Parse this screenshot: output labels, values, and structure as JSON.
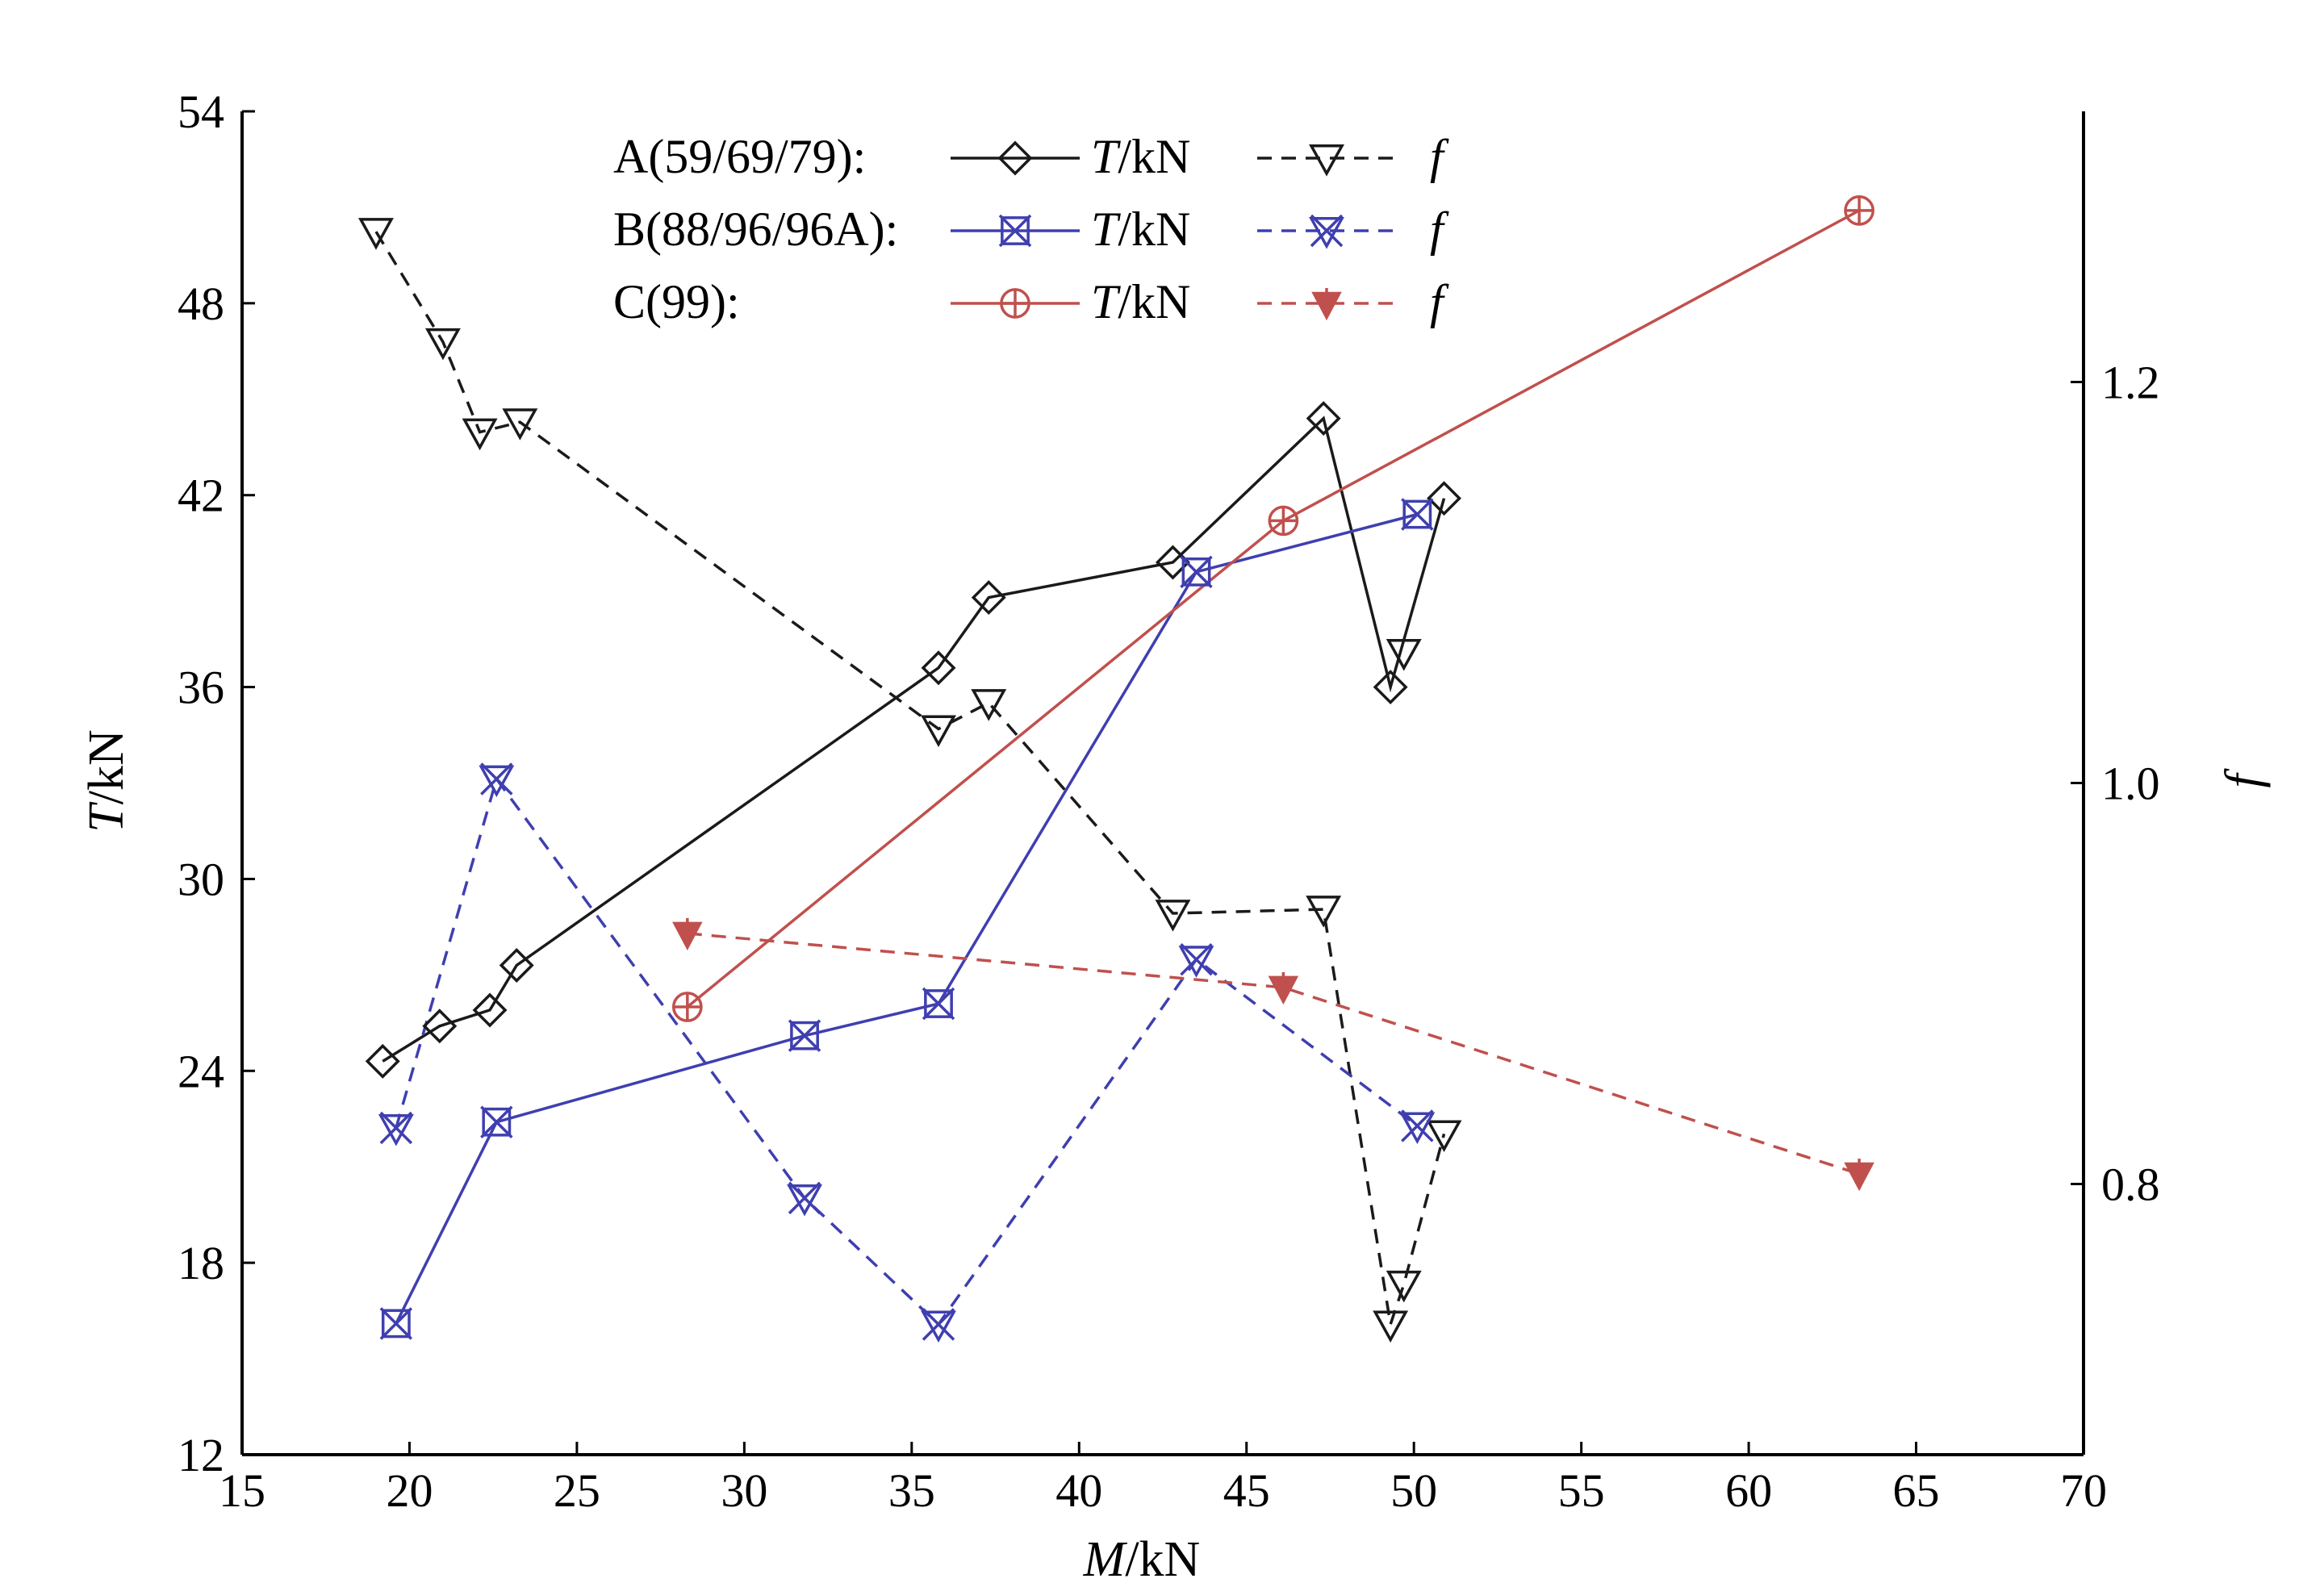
{
  "chart_data": {
    "type": "line",
    "xlabel_var": "M",
    "xlabel_unit": "/kN",
    "ylabel_left_var": "T",
    "ylabel_left_unit": "/kN",
    "ylabel_right": "f",
    "xlim": [
      15,
      70
    ],
    "ylim_left": [
      12,
      54
    ],
    "ylim_right": [
      0.665,
      1.335
    ],
    "x_ticks": [
      15,
      20,
      25,
      30,
      35,
      40,
      45,
      50,
      55,
      60,
      65,
      70
    ],
    "y_left_ticks": [
      12,
      18,
      24,
      30,
      36,
      42,
      48,
      54
    ],
    "y_right_ticks": [
      "0.8",
      "1.0",
      "1.2"
    ],
    "legend_position": "top-center",
    "groups": [
      {
        "label": "A(59/69/79):",
        "color": "#1a1a1a",
        "T_label_var": "T",
        "T_label_unit": "/kN",
        "f_label": "f",
        "T_marker": "diamond",
        "f_marker": "triangle-down",
        "T": {
          "x": [
            19.2,
            20.9,
            22.4,
            23.2,
            35.8,
            37.3,
            42.8,
            47.3,
            49.3,
            50.9
          ],
          "y": [
            24.3,
            25.4,
            25.9,
            27.3,
            36.6,
            38.8,
            39.9,
            44.4,
            36.0,
            41.9
          ]
        },
        "f": {
          "x": [
            19.0,
            21.0,
            22.1,
            23.3,
            35.8,
            37.3,
            42.8,
            47.3,
            49.3,
            49.7,
            50.9
          ],
          "y": [
            1.275,
            1.22,
            1.175,
            1.18,
            1.027,
            1.04,
            0.935,
            0.937,
            0.73,
            0.75,
            0.825
          ]
        },
        "f_extra": {
          "x": [
            49.7
          ],
          "y": [
            1.065
          ]
        }
      },
      {
        "label": "B(88/96/96A):",
        "color": "#3f3fb0",
        "T_label_var": "T",
        "T_label_unit": "/kN",
        "f_label": "f",
        "T_marker": "x-box",
        "f_marker": "x-triangle",
        "T": {
          "x": [
            19.6,
            22.6,
            31.8,
            35.8,
            43.5,
            50.1
          ],
          "y": [
            16.1,
            22.4,
            25.1,
            26.1,
            39.6,
            41.4
          ]
        },
        "f": {
          "x": [
            19.6,
            22.6,
            31.8,
            35.8,
            43.5,
            50.1
          ],
          "y": [
            0.828,
            1.002,
            0.793,
            0.73,
            0.912,
            0.829
          ]
        }
      },
      {
        "label": "C(99):",
        "color": "#c0504d",
        "T_label_var": "T",
        "T_label_unit": "/kN",
        "f_label": "f",
        "T_marker": "circle-plus",
        "f_marker": "star-down",
        "T": {
          "x": [
            28.3,
            46.1,
            63.3
          ],
          "y": [
            26.0,
            41.2,
            50.9
          ]
        },
        "f": {
          "x": [
            28.3,
            46.1,
            63.3
          ],
          "y": [
            0.925,
            0.898,
            0.805
          ]
        }
      }
    ]
  }
}
